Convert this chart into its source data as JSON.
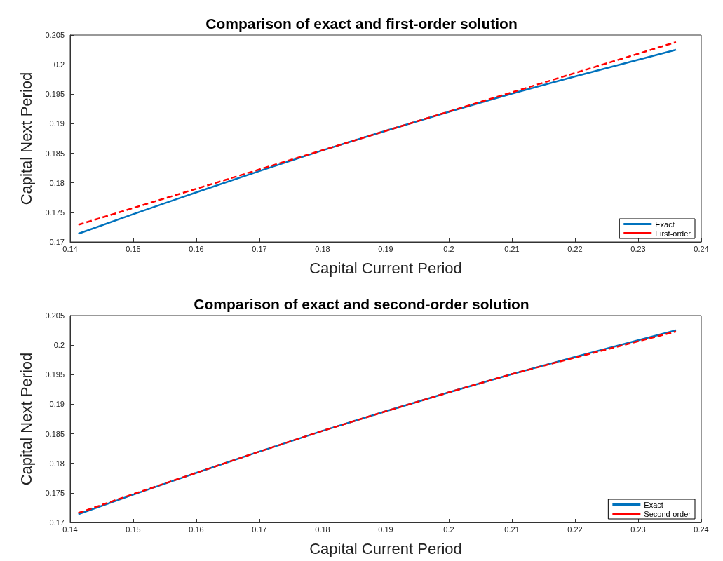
{
  "chart_data": [
    {
      "type": "line",
      "title": "Comparison of exact and first-order solution",
      "xlabel": "Capital Current Period",
      "ylabel": "Capital Next Period",
      "series": [
        {
          "name": "Exact",
          "color": "#0072bd",
          "line_style": "solid",
          "x": [
            0.1413,
            0.15,
            0.16,
            0.17,
            0.18,
            0.19,
            0.2,
            0.21,
            0.22,
            0.236
          ],
          "values": [
            0.1714,
            0.1747,
            0.1784,
            0.182,
            0.1855,
            0.1888,
            0.192,
            0.1951,
            0.198,
            0.2025
          ]
        },
        {
          "name": "First-order",
          "color": "#ff0000",
          "line_style": "dashed",
          "x": [
            0.1413,
            0.236
          ],
          "values": [
            0.1729,
            0.2038
          ]
        }
      ],
      "xlim": [
        0.14,
        0.24
      ],
      "xticks": [
        0.14,
        0.15,
        0.16,
        0.17,
        0.18,
        0.19,
        0.2,
        0.21,
        0.22,
        0.23,
        0.24
      ],
      "ylim": [
        0.17,
        0.205
      ],
      "yticks": [
        0.17,
        0.175,
        0.18,
        0.185,
        0.19,
        0.195,
        0.2,
        0.205
      ],
      "grid": false,
      "legend": "bottom right",
      "marker": "none"
    },
    {
      "type": "line",
      "title": "Comparison of exact and second-order solution",
      "xlabel": "Capital Current Period",
      "ylabel": "Capital Next Period",
      "series": [
        {
          "name": "Exact",
          "color": "#0072bd",
          "line_style": "solid",
          "x": [
            0.1413,
            0.15,
            0.16,
            0.17,
            0.18,
            0.19,
            0.2,
            0.21,
            0.22,
            0.236
          ],
          "values": [
            0.1714,
            0.1747,
            0.1784,
            0.182,
            0.1855,
            0.1888,
            0.192,
            0.1951,
            0.198,
            0.2025
          ]
        },
        {
          "name": "Second-order",
          "color": "#ff0000",
          "line_style": "dashed",
          "x": [
            0.1413,
            0.15,
            0.16,
            0.17,
            0.18,
            0.19,
            0.2,
            0.21,
            0.22,
            0.236
          ],
          "values": [
            0.1716,
            0.1748,
            0.1784,
            0.182,
            0.1855,
            0.1888,
            0.192,
            0.1951,
            0.1979,
            0.2023
          ]
        }
      ],
      "xlim": [
        0.14,
        0.24
      ],
      "xticks": [
        0.14,
        0.15,
        0.16,
        0.17,
        0.18,
        0.19,
        0.2,
        0.21,
        0.22,
        0.23,
        0.24
      ],
      "ylim": [
        0.17,
        0.205
      ],
      "yticks": [
        0.17,
        0.175,
        0.18,
        0.185,
        0.19,
        0.195,
        0.2,
        0.205
      ],
      "grid": false,
      "legend": "bottom right",
      "marker": "none"
    }
  ]
}
